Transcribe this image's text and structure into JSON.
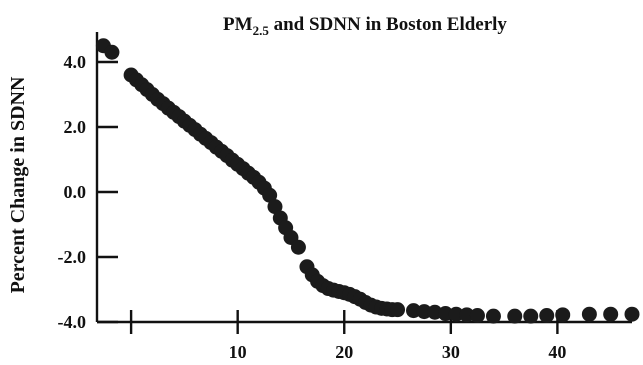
{
  "chart_data": {
    "type": "scatter",
    "title_main": "PM",
    "title_sub": "2.5",
    "title_rest": " and SDNN in Boston Elderly",
    "ylabel": "Percent Change in SDNN",
    "xlabel": "",
    "xlim": [
      -3.2,
      47
    ],
    "ylim": [
      -4.0,
      5.0
    ],
    "x_ticks": [
      0,
      10,
      20,
      30,
      40
    ],
    "x_tick_labels": [
      "",
      "10",
      "20",
      "30",
      "40"
    ],
    "y_ticks": [
      4.0,
      2.0,
      0.0,
      -2.0,
      -4.0
    ],
    "y_tick_labels": [
      "4.0",
      "2.0",
      "0.0",
      "-2.0",
      "-4.0"
    ],
    "grid": false,
    "series": [
      {
        "marker_color": "#1b1b1b",
        "points": [
          [
            -2.6,
            4.5
          ],
          [
            -1.8,
            4.3
          ],
          [
            0.0,
            3.6
          ],
          [
            0.5,
            3.45
          ],
          [
            1.0,
            3.3
          ],
          [
            1.5,
            3.15
          ],
          [
            2.0,
            3.0
          ],
          [
            2.5,
            2.85
          ],
          [
            3.0,
            2.72
          ],
          [
            3.5,
            2.58
          ],
          [
            4.0,
            2.45
          ],
          [
            4.5,
            2.32
          ],
          [
            5.0,
            2.18
          ],
          [
            5.5,
            2.05
          ],
          [
            6.0,
            1.92
          ],
          [
            6.5,
            1.78
          ],
          [
            7.0,
            1.65
          ],
          [
            7.5,
            1.52
          ],
          [
            8.0,
            1.38
          ],
          [
            8.5,
            1.25
          ],
          [
            9.0,
            1.12
          ],
          [
            9.5,
            0.98
          ],
          [
            10.0,
            0.85
          ],
          [
            10.5,
            0.72
          ],
          [
            11.0,
            0.58
          ],
          [
            11.5,
            0.45
          ],
          [
            12.0,
            0.3
          ],
          [
            12.5,
            0.12
          ],
          [
            13.0,
            -0.1
          ],
          [
            13.5,
            -0.45
          ],
          [
            14.0,
            -0.8
          ],
          [
            14.5,
            -1.1
          ],
          [
            15.0,
            -1.4
          ],
          [
            15.7,
            -1.7
          ],
          [
            16.5,
            -2.3
          ],
          [
            17.0,
            -2.55
          ],
          [
            17.5,
            -2.75
          ],
          [
            18.0,
            -2.88
          ],
          [
            18.5,
            -2.97
          ],
          [
            19.0,
            -3.02
          ],
          [
            19.5,
            -3.06
          ],
          [
            20.0,
            -3.1
          ],
          [
            20.5,
            -3.15
          ],
          [
            21.0,
            -3.22
          ],
          [
            21.5,
            -3.3
          ],
          [
            22.0,
            -3.4
          ],
          [
            22.5,
            -3.48
          ],
          [
            23.0,
            -3.54
          ],
          [
            23.5,
            -3.58
          ],
          [
            24.0,
            -3.6
          ],
          [
            24.5,
            -3.62
          ],
          [
            25.0,
            -3.62
          ],
          [
            26.5,
            -3.65
          ],
          [
            27.5,
            -3.68
          ],
          [
            28.5,
            -3.7
          ],
          [
            29.5,
            -3.74
          ],
          [
            30.5,
            -3.76
          ],
          [
            31.5,
            -3.78
          ],
          [
            32.5,
            -3.8
          ],
          [
            34.0,
            -3.82
          ],
          [
            36.0,
            -3.82
          ],
          [
            37.5,
            -3.82
          ],
          [
            39.0,
            -3.8
          ],
          [
            40.5,
            -3.78
          ],
          [
            43.0,
            -3.76
          ],
          [
            45.0,
            -3.76
          ],
          [
            47.0,
            -3.76
          ]
        ]
      }
    ]
  }
}
